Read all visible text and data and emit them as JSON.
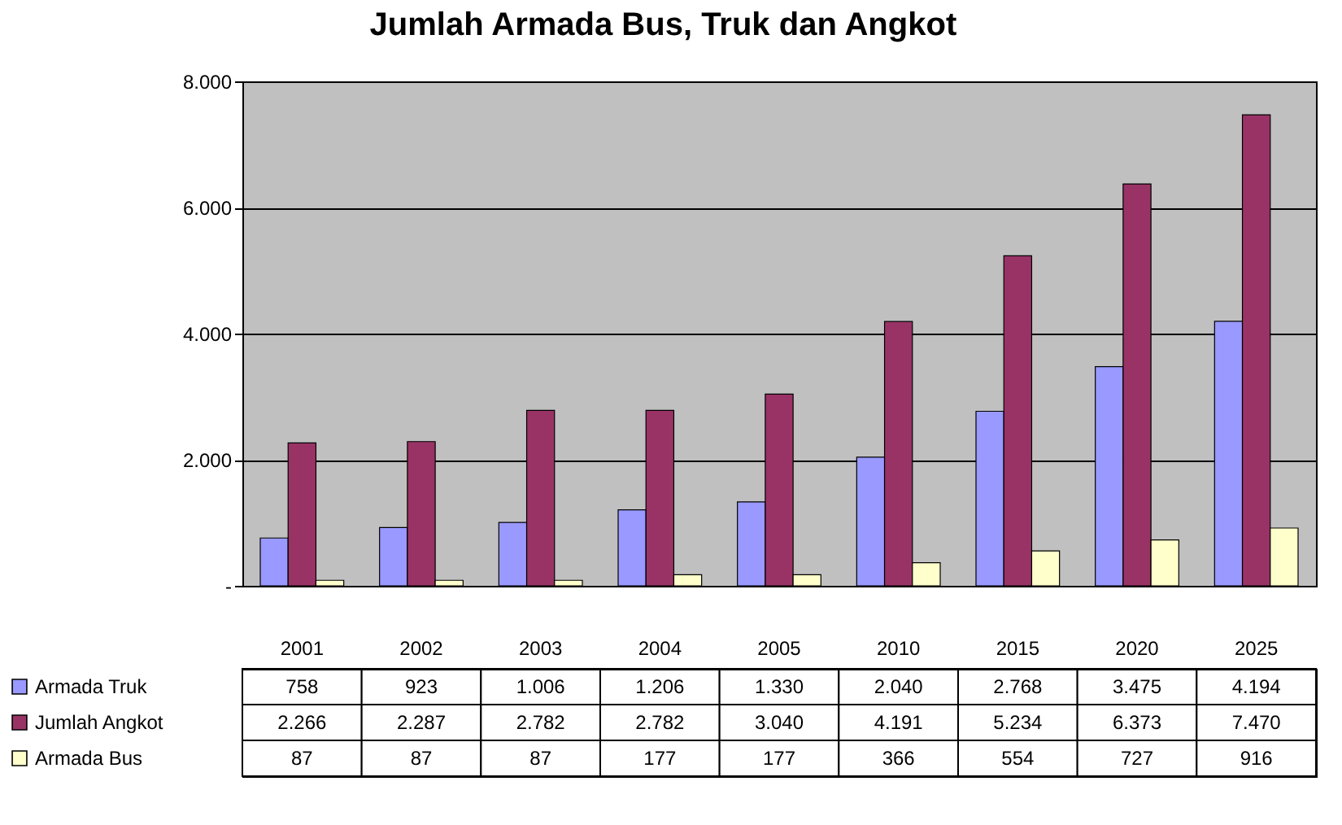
{
  "chart_data": {
    "type": "bar",
    "title": "Jumlah Armada Bus, Truk dan Angkot",
    "categories": [
      "2001",
      "2002",
      "2003",
      "2004",
      "2005",
      "2010",
      "2015",
      "2020",
      "2025"
    ],
    "series": [
      {
        "name": "Armada Truk",
        "color": "#9999ff",
        "values": [
          758,
          923,
          1006,
          1206,
          1330,
          2040,
          2768,
          3475,
          4194
        ],
        "value_labels": [
          "758",
          "923",
          "1.006",
          "1.206",
          "1.330",
          "2.040",
          "2.768",
          "3.475",
          "4.194"
        ]
      },
      {
        "name": "Jumlah Angkot",
        "color": "#993366",
        "values": [
          2266,
          2287,
          2782,
          2782,
          3040,
          4191,
          5234,
          6373,
          7470
        ],
        "value_labels": [
          "2.266",
          "2.287",
          "2.782",
          "2.782",
          "3.040",
          "4.191",
          "5.234",
          "6.373",
          "7.470"
        ]
      },
      {
        "name": "Armada Bus",
        "color": "#ffffcc",
        "values": [
          87,
          87,
          87,
          177,
          177,
          366,
          554,
          727,
          916
        ],
        "value_labels": [
          "87",
          "87",
          "87",
          "177",
          "177",
          "366",
          "554",
          "727",
          "916"
        ]
      }
    ],
    "ylim": [
      0,
      8000
    ],
    "yticks": [
      {
        "value": 0,
        "label": "-"
      },
      {
        "value": 2000,
        "label": "2.000"
      },
      {
        "value": 4000,
        "label": "4.000"
      },
      {
        "value": 6000,
        "label": "6.000"
      },
      {
        "value": 8000,
        "label": "8.000"
      }
    ],
    "grid": "y",
    "legend": "bottom left"
  }
}
